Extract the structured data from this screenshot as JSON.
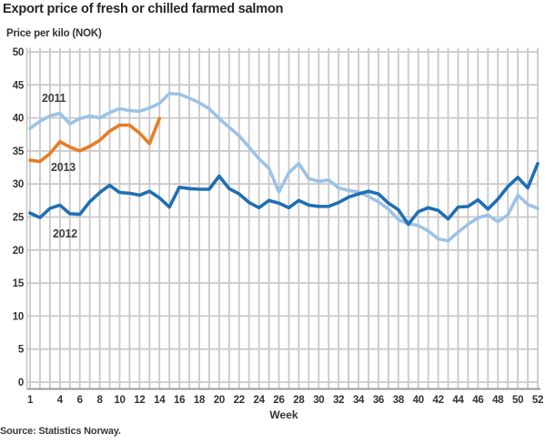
{
  "header": {
    "title": "Export price of fresh or chilled farmed salmon",
    "y_axis_label": "Price per kilo (NOK)"
  },
  "footer": {
    "source": "Source: Statistics Norway."
  },
  "colors": {
    "series_2011": "#9cc3e5",
    "series_2012": "#1f6eb4",
    "series_2013": "#e87c26",
    "gridline": "#c9c9c9",
    "axis_line": "#9b9b9b",
    "text": "#333333"
  },
  "chart_data": {
    "type": "line",
    "title": "Export price of fresh or chilled farmed salmon",
    "xlabel": "Week",
    "ylabel": "Price per kilo (NOK)",
    "xlim": [
      1,
      52
    ],
    "ylim": [
      0,
      50
    ],
    "grid": true,
    "x_axis": {
      "label": "Week",
      "tick_labels": [
        1,
        4,
        6,
        8,
        10,
        12,
        14,
        16,
        18,
        20,
        22,
        24,
        26,
        28,
        30,
        32,
        34,
        36,
        38,
        40,
        42,
        44,
        46,
        48,
        50,
        52
      ]
    },
    "y_axis": {
      "label": "Price per kilo (NOK)",
      "ticks": [
        0,
        5,
        10,
        15,
        20,
        25,
        30,
        35,
        40,
        45,
        50
      ]
    },
    "x_unit": "week number, 1-52",
    "series": [
      {
        "name": "2011",
        "color": "#9cc3e5",
        "start_week": 1,
        "values": [
          38.4,
          39.5,
          40.3,
          40.7,
          39.1,
          39.9,
          40.3,
          40.0,
          40.8,
          41.4,
          41.1,
          41.0,
          41.5,
          42.2,
          43.7,
          43.6,
          43.0,
          42.3,
          41.4,
          39.9,
          38.6,
          37.3,
          35.6,
          33.8,
          32.4,
          28.8,
          31.7,
          33.1,
          30.8,
          30.4,
          30.6,
          29.4,
          29.0,
          28.8,
          28.1,
          27.3,
          26.2,
          24.6,
          24.0,
          23.7,
          22.9,
          21.7,
          21.4,
          22.7,
          23.9,
          24.9,
          25.3,
          24.3,
          25.3,
          28.3,
          26.9,
          26.3
        ]
      },
      {
        "name": "2013",
        "color": "#e87c26",
        "start_week": 1,
        "values": [
          33.6,
          33.4,
          34.6,
          36.4,
          35.6,
          35.0,
          35.7,
          36.6,
          38.0,
          38.9,
          38.9,
          37.7,
          36.1,
          39.9
        ]
      },
      {
        "name": "2012",
        "color": "#1f6eb4",
        "start_week": 1,
        "values": [
          25.6,
          24.9,
          26.3,
          26.8,
          25.5,
          25.4,
          27.3,
          28.7,
          29.8,
          28.7,
          28.6,
          28.3,
          28.9,
          27.9,
          26.5,
          29.5,
          29.3,
          29.2,
          29.2,
          31.2,
          29.3,
          28.5,
          27.2,
          26.4,
          27.5,
          27.1,
          26.4,
          27.5,
          26.8,
          26.6,
          26.6,
          27.2,
          28.0,
          28.5,
          28.9,
          28.5,
          27.1,
          26.1,
          23.9,
          25.8,
          26.4,
          26.0,
          24.7,
          26.5,
          26.6,
          27.6,
          26.2,
          27.7,
          29.6,
          31.0,
          29.4,
          33.1
        ]
      }
    ]
  }
}
